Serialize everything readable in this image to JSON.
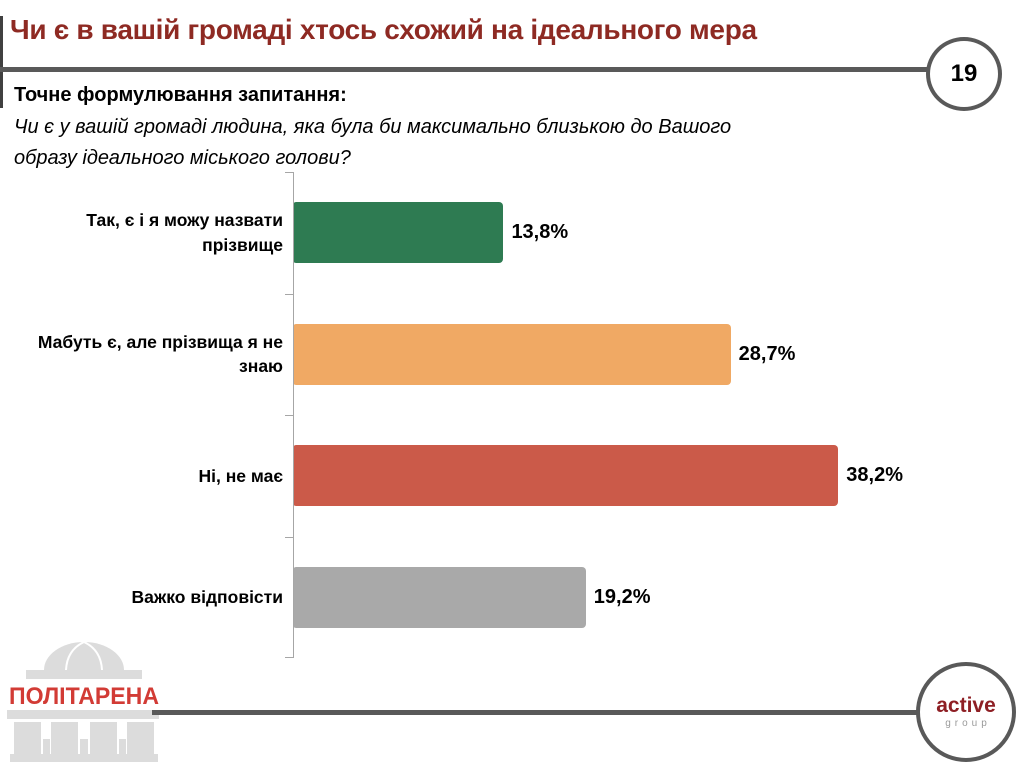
{
  "page": {
    "title": "Чи є в вашій громаді хтось схожий на ідеального мера",
    "slide_number": "19",
    "question_heading": "Точне формулювання запитання:",
    "question_text": "Чи є у вашій громаді людина, яка була би максимально близькою до Вашого образу ідеального міського голови?"
  },
  "chart_data": {
    "type": "bar",
    "orientation": "horizontal",
    "title": "",
    "categories": [
      "Так, є і я можу назвати прізвище",
      "Мабуть є, але прізвища я не знаю",
      "Ні, не має",
      "Важко відповісти"
    ],
    "values": [
      13.8,
      28.7,
      38.2,
      19.2
    ],
    "value_labels": [
      "13,8%",
      "28,7%",
      "38,2%",
      "19,2%"
    ],
    "bar_colors": [
      "#2e7b52",
      "#f0a964",
      "#cb5a49",
      "#a9a9a9"
    ],
    "xlim": [
      0,
      40
    ],
    "grid": false,
    "legend": false,
    "value_label_position": "right-of-bar"
  },
  "footer": {
    "politarena_logo_text": "ПОЛІТАРЕНА",
    "active_group_logo": {
      "line1": "active",
      "line2": "group"
    }
  },
  "colors": {
    "title_red": "#8e2a23",
    "divider_gray": "#595959",
    "politarena_red": "#d23b35",
    "active_red": "#8e1f24",
    "axis_gray": "#a6a6a6",
    "logo_building_gray": "#dcdcdc"
  }
}
